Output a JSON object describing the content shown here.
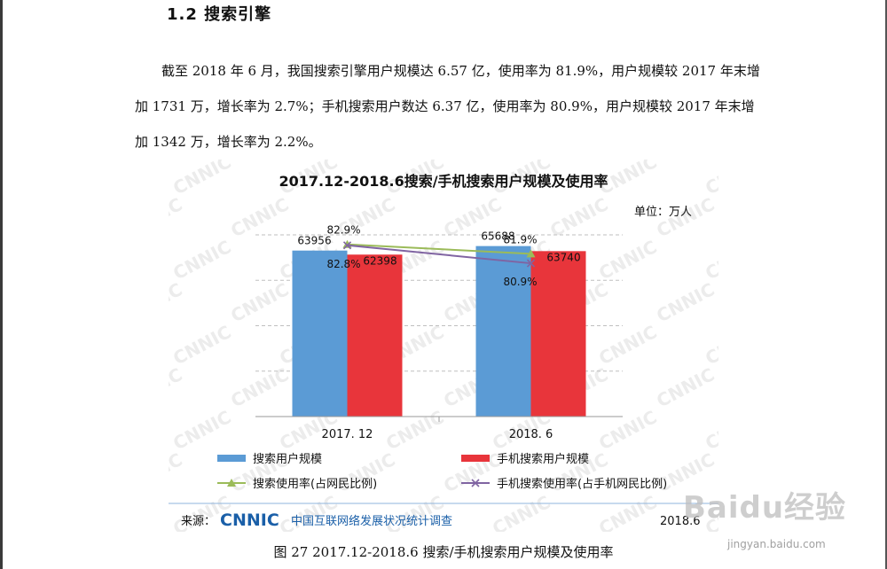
{
  "section": {
    "title": "1.2  搜索引擎"
  },
  "paragraph": {
    "text": "截至 2018 年 6 月，我国搜索引擎用户规模达 6.57 亿，使用率为 81.9%，用户规模较 2017 年末增加 1731 万，增长率为 2.7%；手机搜索用户数达 6.37 亿，使用率为 80.9%，用户规模较 2017 年末增加 1342 万，增长率为 2.2%。"
  },
  "chart_data": {
    "type": "bar",
    "title": "2017.12-2018.6搜索/手机搜索用户规模及使用率",
    "unit_label": "单位：万人",
    "categories": [
      "2017. 12",
      "2018. 6"
    ],
    "series": [
      {
        "name": "搜索用户规模",
        "kind": "bar",
        "color": "#5b9bd5",
        "values": [
          63956,
          65688
        ],
        "labels": [
          "63956",
          "65688"
        ]
      },
      {
        "name": "手机搜索用户规模",
        "kind": "bar",
        "color": "#e8353b",
        "values": [
          62398,
          63740
        ],
        "labels": [
          "62398",
          "63740"
        ]
      },
      {
        "name": "搜索使用率(占网民比例)",
        "kind": "line",
        "color": "#9bbb59",
        "values": [
          82.9,
          81.9
        ],
        "labels": [
          "82.9%",
          "81.9%"
        ]
      },
      {
        "name": "手机搜索使用率(占手机网民比例)",
        "kind": "line",
        "color": "#8064a2",
        "values": [
          82.8,
          80.9
        ],
        "labels": [
          "82.8%",
          "80.9%"
        ]
      }
    ],
    "grid": true,
    "legend_position": "bottom",
    "source": {
      "prefix": "来源：",
      "brand": "CNNIC",
      "org": "中国互联网络发展状况统计调查",
      "date": "2018.6"
    },
    "background_watermark": "CNNIC"
  },
  "caption": {
    "text": "图 27    2017.12-2018.6 搜索/手机搜索用户规模及使用率"
  },
  "overlay": {
    "brand": "Baidu经验",
    "url": "jingyan.baidu.com"
  }
}
